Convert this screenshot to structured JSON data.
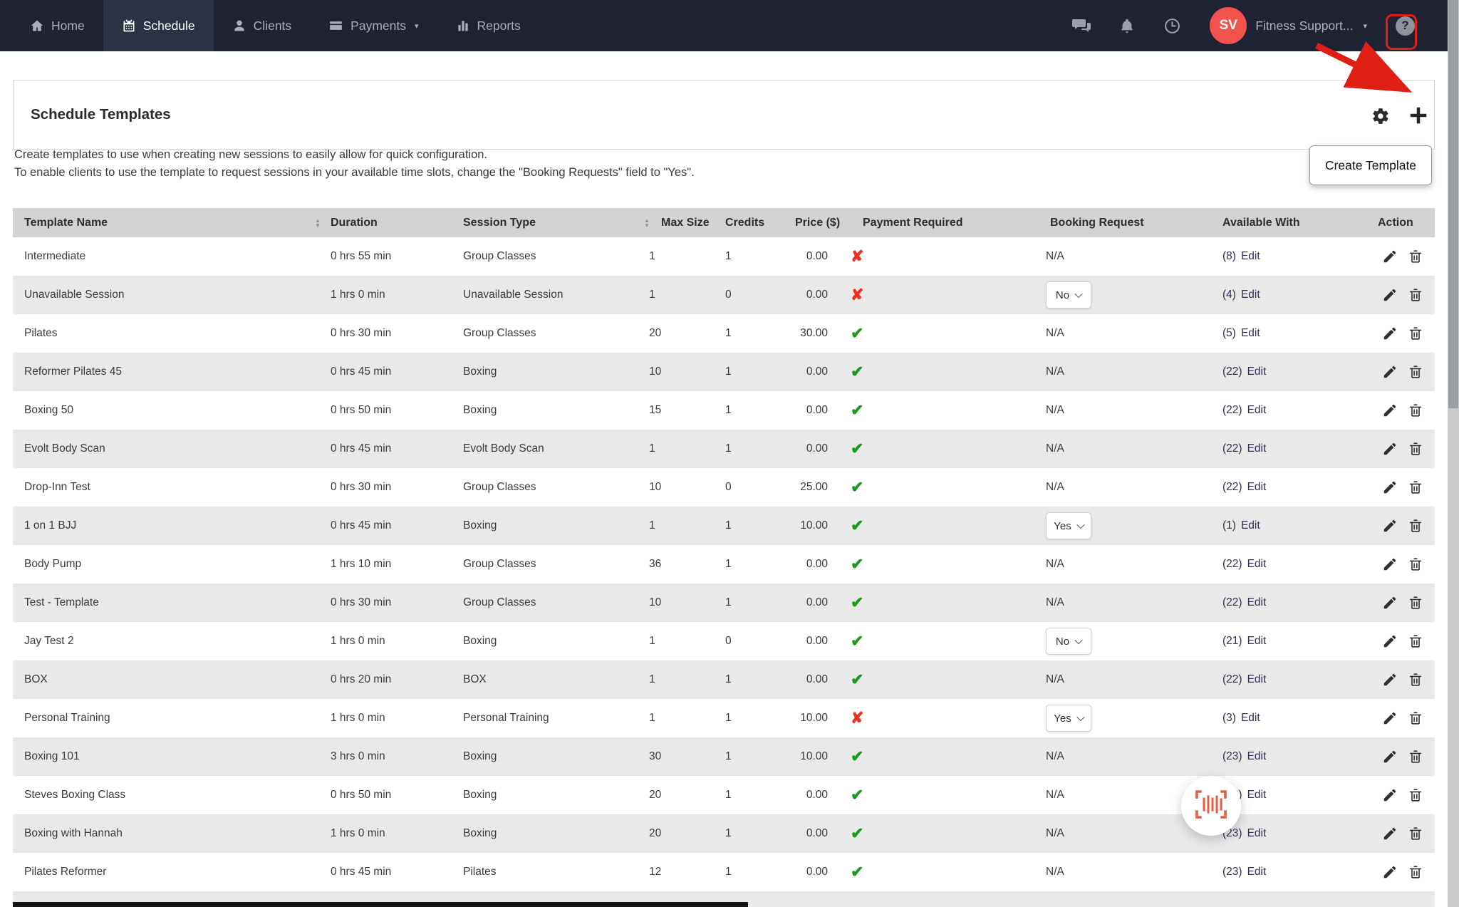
{
  "nav": {
    "items": [
      {
        "label": "Home",
        "icon": "home-icon",
        "active": false
      },
      {
        "label": "Schedule",
        "icon": "calendar-icon",
        "active": true
      },
      {
        "label": "Clients",
        "icon": "person-icon",
        "active": false
      },
      {
        "label": "Payments",
        "icon": "credit-card-icon",
        "active": false,
        "has_caret": true
      },
      {
        "label": "Reports",
        "icon": "bar-chart-icon",
        "active": false
      }
    ],
    "right": {
      "avatar_initials": "SV",
      "account_label": "Fitness Support...",
      "icons": [
        "chat-icon",
        "bell-icon",
        "clock-icon",
        "help-icon"
      ]
    }
  },
  "panel": {
    "title": "Schedule Templates",
    "tooltip": "Create Template"
  },
  "description": {
    "line1": "Create templates to use when creating new sessions to easily allow for quick configuration.",
    "line2": "To enable clients to use the template to request sessions in your available time slots, change the \"Booking Requests\" field to \"Yes\"."
  },
  "table": {
    "columns": [
      "Template Name",
      "Duration",
      "Session Type",
      "Max Size",
      "Credits",
      "Price ($)",
      "Payment Required",
      "Booking Request",
      "Available With",
      "Action"
    ],
    "na_label": "N/A",
    "edit_label": "Edit",
    "rows": [
      {
        "name": "Intermediate",
        "duration": "0 hrs 55 min",
        "session_type": "Group Classes",
        "max_size": "1",
        "credits": "1",
        "price": "0.00",
        "payment_required": false,
        "booking_select": null,
        "available": "(8)"
      },
      {
        "name": "Unavailable Session",
        "duration": "1 hrs 0 min",
        "session_type": "Unavailable Session",
        "max_size": "1",
        "credits": "0",
        "price": "0.00",
        "payment_required": false,
        "booking_select": "No",
        "available": "(4)"
      },
      {
        "name": "Pilates",
        "duration": "0 hrs 30 min",
        "session_type": "Group Classes",
        "max_size": "20",
        "credits": "1",
        "price": "30.00",
        "payment_required": true,
        "booking_select": null,
        "available": "(5)"
      },
      {
        "name": "Reformer Pilates 45",
        "duration": "0 hrs 45 min",
        "session_type": "Boxing",
        "max_size": "10",
        "credits": "1",
        "price": "0.00",
        "payment_required": true,
        "booking_select": null,
        "available": "(22)"
      },
      {
        "name": "Boxing 50",
        "duration": "0 hrs 50 min",
        "session_type": "Boxing",
        "max_size": "15",
        "credits": "1",
        "price": "0.00",
        "payment_required": true,
        "booking_select": null,
        "available": "(22)"
      },
      {
        "name": "Evolt Body Scan",
        "duration": "0 hrs 45 min",
        "session_type": "Evolt Body Scan",
        "max_size": "1",
        "credits": "1",
        "price": "0.00",
        "payment_required": true,
        "booking_select": null,
        "available": "(22)"
      },
      {
        "name": "Drop-Inn Test",
        "duration": "0 hrs 30 min",
        "session_type": "Group Classes",
        "max_size": "10",
        "credits": "0",
        "price": "25.00",
        "payment_required": true,
        "booking_select": null,
        "available": "(22)"
      },
      {
        "name": "1 on 1 BJJ",
        "duration": "0 hrs 45 min",
        "session_type": "Boxing",
        "max_size": "1",
        "credits": "1",
        "price": "10.00",
        "payment_required": true,
        "booking_select": "Yes",
        "available": "(1)"
      },
      {
        "name": "Body Pump",
        "duration": "1 hrs 10 min",
        "session_type": "Group Classes",
        "max_size": "36",
        "credits": "1",
        "price": "0.00",
        "payment_required": true,
        "booking_select": null,
        "available": "(22)"
      },
      {
        "name": "Test - Template",
        "duration": "0 hrs 30 min",
        "session_type": "Group Classes",
        "max_size": "10",
        "credits": "1",
        "price": "0.00",
        "payment_required": true,
        "booking_select": null,
        "available": "(22)"
      },
      {
        "name": "Jay Test 2",
        "duration": "1 hrs 0 min",
        "session_type": "Boxing",
        "max_size": "1",
        "credits": "0",
        "price": "0.00",
        "payment_required": true,
        "booking_select": "No",
        "available": "(21)"
      },
      {
        "name": "BOX",
        "duration": "0 hrs 20 min",
        "session_type": "BOX",
        "max_size": "1",
        "credits": "1",
        "price": "0.00",
        "payment_required": true,
        "booking_select": null,
        "available": "(22)"
      },
      {
        "name": "Personal Training",
        "duration": "1 hrs 0 min",
        "session_type": "Personal Training",
        "max_size": "1",
        "credits": "1",
        "price": "10.00",
        "payment_required": false,
        "booking_select": "Yes",
        "available": "(3)"
      },
      {
        "name": "Boxing 101",
        "duration": "3 hrs 0 min",
        "session_type": "Boxing",
        "max_size": "30",
        "credits": "1",
        "price": "10.00",
        "payment_required": true,
        "booking_select": null,
        "available": "(23)"
      },
      {
        "name": "Steves Boxing Class",
        "duration": "0 hrs 50 min",
        "session_type": "Boxing",
        "max_size": "20",
        "credits": "1",
        "price": "0.00",
        "payment_required": true,
        "booking_select": null,
        "available": "(23)"
      },
      {
        "name": "Boxing with Hannah",
        "duration": "1 hrs 0 min",
        "session_type": "Boxing",
        "max_size": "20",
        "credits": "1",
        "price": "0.00",
        "payment_required": true,
        "booking_select": null,
        "available": "(23)"
      },
      {
        "name": "Pilates Reformer",
        "duration": "0 hrs 45 min",
        "session_type": "Pilates",
        "max_size": "12",
        "credits": "1",
        "price": "0.00",
        "payment_required": true,
        "booking_select": null,
        "available": "(23)"
      }
    ],
    "partial_row_visible": true
  },
  "colors": {
    "nav_background": "#1e2233",
    "nav_active_tab": "#2a3343",
    "avatar_red": "#f2544d",
    "check_green": "#169c19",
    "cross_red": "#ee2e1f",
    "annotation_red": "#e01f14",
    "beacon_orange": "#e55e3d",
    "link_navy": "#2e3156",
    "header_gray": "#d3d3d3",
    "row_alt_gray": "#e9e9e9"
  }
}
